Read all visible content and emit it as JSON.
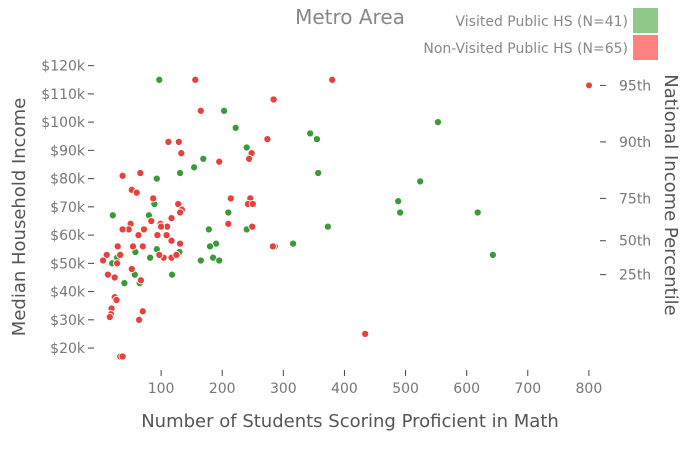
{
  "chart_data": {
    "type": "scatter",
    "title": "Metro Area",
    "xlabel": "Number of Students Scoring Proficient in Math",
    "ylabel": "Median Household Income",
    "y2label": "National Income Percentile",
    "xlim": [
      0,
      810
    ],
    "ylim": [
      14000,
      122000
    ],
    "x_ticks": [
      100,
      200,
      300,
      400,
      500,
      600,
      700,
      800
    ],
    "y_ticks": [
      {
        "value": 20000,
        "label": "$20k"
      },
      {
        "value": 30000,
        "label": "$30k"
      },
      {
        "value": 40000,
        "label": "$40k"
      },
      {
        "value": 50000,
        "label": "$50k"
      },
      {
        "value": 60000,
        "label": "$60k"
      },
      {
        "value": 70000,
        "label": "$70k"
      },
      {
        "value": 80000,
        "label": "$80k"
      },
      {
        "value": 90000,
        "label": "$90k"
      },
      {
        "value": 100000,
        "label": "$100k"
      },
      {
        "value": 110000,
        "label": "$110k"
      },
      {
        "value": 120000,
        "label": "$120k"
      }
    ],
    "y2_ticks": [
      {
        "value": 46000,
        "label": "25th"
      },
      {
        "value": 58000,
        "label": "50th"
      },
      {
        "value": 73000,
        "label": "75th"
      },
      {
        "value": 93000,
        "label": "90th"
      },
      {
        "value": 113000,
        "label": "95th"
      }
    ],
    "grid": false,
    "legend_position": "top-right",
    "series": [
      {
        "name": "Visited Public HS (N=41)",
        "color": "#3a9a3a",
        "legend_color": "#8ec98a",
        "points": [
          [
            97,
            115000
          ],
          [
            203,
            104000
          ],
          [
            222,
            98000
          ],
          [
            240,
            91000
          ],
          [
            344,
            96000
          ],
          [
            355,
            94000
          ],
          [
            553,
            100000
          ],
          [
            154,
            84000
          ],
          [
            169,
            87000
          ],
          [
            131,
            82000
          ],
          [
            93,
            80000
          ],
          [
            357,
            82000
          ],
          [
            524,
            79000
          ],
          [
            488,
            72000
          ],
          [
            618,
            68000
          ],
          [
            491,
            68000
          ],
          [
            210,
            68000
          ],
          [
            89,
            71000
          ],
          [
            80,
            67000
          ],
          [
            21,
            67000
          ],
          [
            178,
            62000
          ],
          [
            240,
            62000
          ],
          [
            373,
            63000
          ],
          [
            190,
            57000
          ],
          [
            180,
            56000
          ],
          [
            286,
            56000
          ],
          [
            316,
            57000
          ],
          [
            643,
            53000
          ],
          [
            93,
            55000
          ],
          [
            130,
            54000
          ],
          [
            58,
            54000
          ],
          [
            28,
            52000
          ],
          [
            20,
            50000
          ],
          [
            82,
            52000
          ],
          [
            165,
            51000
          ],
          [
            185,
            52000
          ],
          [
            195,
            51000
          ],
          [
            118,
            46000
          ],
          [
            57,
            46000
          ],
          [
            65,
            43000
          ],
          [
            40,
            43000
          ]
        ]
      },
      {
        "name": "Non-Visited Public HS (N=65)",
        "color": "#e8403c",
        "legend_color": "#ff8080",
        "points": [
          [
            156,
            115000
          ],
          [
            380,
            115000
          ],
          [
            284,
            108000
          ],
          [
            165,
            104000
          ],
          [
            248,
            89000
          ],
          [
            112,
            93000
          ],
          [
            129,
            93000
          ],
          [
            274,
            94000
          ],
          [
            133,
            89000
          ],
          [
            195,
            86000
          ],
          [
            244,
            87000
          ],
          [
            37,
            81000
          ],
          [
            66,
            82000
          ],
          [
            52,
            76000
          ],
          [
            60,
            75000
          ],
          [
            128,
            71000
          ],
          [
            87,
            73000
          ],
          [
            134,
            69000
          ],
          [
            131,
            68000
          ],
          [
            117,
            66000
          ],
          [
            110,
            63000
          ],
          [
            214,
            73000
          ],
          [
            246,
            73000
          ],
          [
            242,
            71000
          ],
          [
            250,
            71000
          ],
          [
            50,
            64000
          ],
          [
            63,
            60000
          ],
          [
            72,
            62000
          ],
          [
            54,
            56000
          ],
          [
            70,
            56000
          ],
          [
            47,
            62000
          ],
          [
            84,
            65000
          ],
          [
            99,
            64000
          ],
          [
            94,
            60000
          ],
          [
            100,
            63000
          ],
          [
            109,
            60000
          ],
          [
            37,
            62000
          ],
          [
            29,
            56000
          ],
          [
            33,
            53000
          ],
          [
            11,
            53000
          ],
          [
            5,
            51000
          ],
          [
            28,
            50000
          ],
          [
            52,
            48000
          ],
          [
            13,
            46000
          ],
          [
            24,
            45000
          ],
          [
            67,
            44000
          ],
          [
            104,
            52000
          ],
          [
            117,
            52000
          ],
          [
            125,
            53000
          ],
          [
            97,
            53000
          ],
          [
            117,
            58000
          ],
          [
            131,
            57000
          ],
          [
            283,
            56000
          ],
          [
            249,
            63000
          ],
          [
            24,
            38000
          ],
          [
            27,
            37000
          ],
          [
            19,
            34000
          ],
          [
            18,
            32000
          ],
          [
            16,
            31000
          ],
          [
            64,
            30000
          ],
          [
            70,
            33000
          ],
          [
            33,
            17000
          ],
          [
            37,
            17000
          ],
          [
            434,
            25000
          ],
          [
            210,
            64000
          ]
        ]
      }
    ]
  }
}
